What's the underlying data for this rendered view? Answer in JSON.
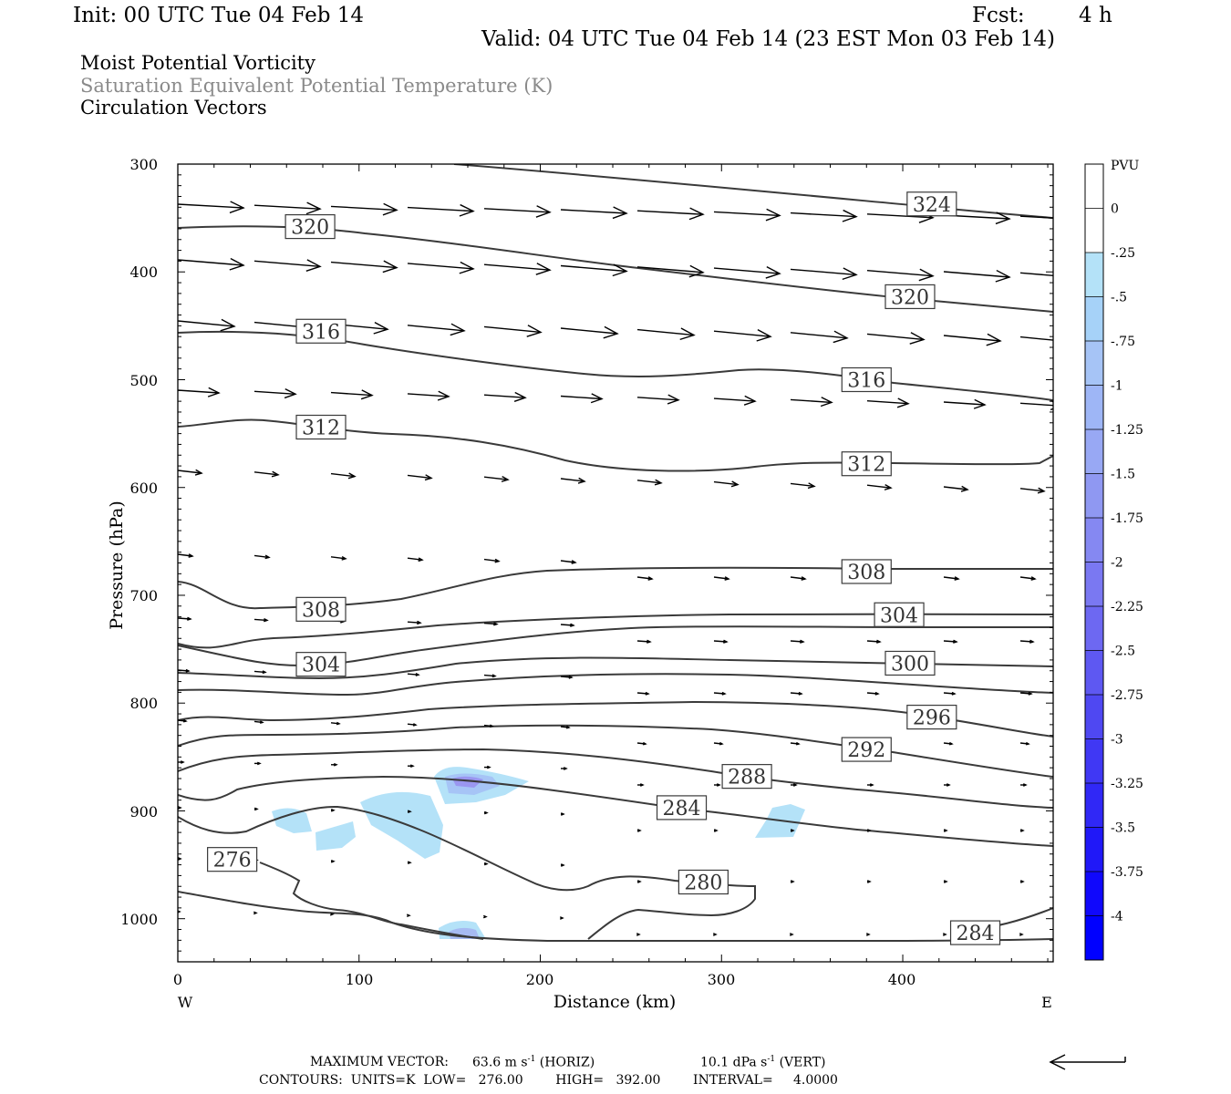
{
  "header": {
    "init": "Init: 00 UTC Tue 04 Feb 14",
    "fcst_label": "Fcst:",
    "fcst_value": "4 h",
    "valid": "Valid: 04 UTC Tue 04 Feb 14 (23 EST Mon 03 Feb 14)"
  },
  "fields": {
    "line1": "Moist Potential Vorticity",
    "line2": "Saturation Equivalent Potential Temperature (K)",
    "line3": "Circulation Vectors"
  },
  "colors": {
    "contour": "#3a3a3a",
    "field2_text": "#8a8a8a",
    "fill_light": "#b4e2f8",
    "fill_mid": "#a6baf2",
    "fill_strong": "#9a96f0"
  },
  "chart_data": {
    "type": "cross-section",
    "xlabel": "Distance (km)",
    "ylabel": "Pressure (hPa)",
    "xlim": [
      0,
      483
    ],
    "ylim": [
      1040,
      300
    ],
    "x_ticks": [
      "0",
      "100",
      "200",
      "300",
      "400"
    ],
    "y_ticks": [
      "300",
      "400",
      "500",
      "600",
      "700",
      "800",
      "900",
      "1000"
    ],
    "x_ends": {
      "left": "W",
      "right": "E"
    },
    "colorbar": {
      "title": "PVU",
      "labels": [
        "0",
        "-.25",
        "-.5",
        "-.75",
        "-1",
        "-1.25",
        "-1.5",
        "-1.75",
        "-2",
        "-2.25",
        "-2.5",
        "-2.75",
        "-3",
        "-3.25",
        "-3.5",
        "-3.75",
        "-4"
      ],
      "colors": [
        "#ffffff",
        "#ffffff",
        "#b4e2f8",
        "#a6d2f8",
        "#a6c4f6",
        "#9eb6f6",
        "#98a8f4",
        "#8f98f2",
        "#8588f2",
        "#7a78f2",
        "#6d68f2",
        "#5e58f2",
        "#4f48f2",
        "#4038f4",
        "#3028f6",
        "#2018f8",
        "#1008fc",
        "#0000ff"
      ]
    },
    "contour_labels": [
      {
        "text": "324",
        "x": 416,
        "p": 337
      },
      {
        "text": "320",
        "x": 73,
        "p": 358
      },
      {
        "text": "320",
        "x": 404,
        "p": 423
      },
      {
        "text": "316",
        "x": 79,
        "p": 455
      },
      {
        "text": "316",
        "x": 380,
        "p": 500
      },
      {
        "text": "312",
        "x": 79,
        "p": 544
      },
      {
        "text": "312",
        "x": 380,
        "p": 578
      },
      {
        "text": "308",
        "x": 380,
        "p": 678
      },
      {
        "text": "308",
        "x": 79,
        "p": 713
      },
      {
        "text": "304",
        "x": 398,
        "p": 718
      },
      {
        "text": "300",
        "x": 404,
        "p": 763
      },
      {
        "text": "304",
        "x": 79,
        "p": 764
      },
      {
        "text": "296",
        "x": 416,
        "p": 813
      },
      {
        "text": "292",
        "x": 380,
        "p": 843
      },
      {
        "text": "288",
        "x": 314,
        "p": 868
      },
      {
        "text": "284",
        "x": 278,
        "p": 897
      },
      {
        "text": "276",
        "x": 30,
        "p": 945
      },
      {
        "text": "280",
        "x": 290,
        "p": 966
      },
      {
        "text": "284",
        "x": 440,
        "p": 1013
      }
    ],
    "footer": {
      "max_vector_label": "MAXIMUM VECTOR:",
      "horiz": "63.6 m s",
      "horiz_unit": "(HORIZ)",
      "vert": "10.1 dPa s",
      "vert_unit": "(VERT)",
      "exponent": "-1",
      "contours": "CONTOURS:  UNITS=K  LOW=   276.00        HIGH=   392.00        INTERVAL=     4.0000"
    }
  }
}
